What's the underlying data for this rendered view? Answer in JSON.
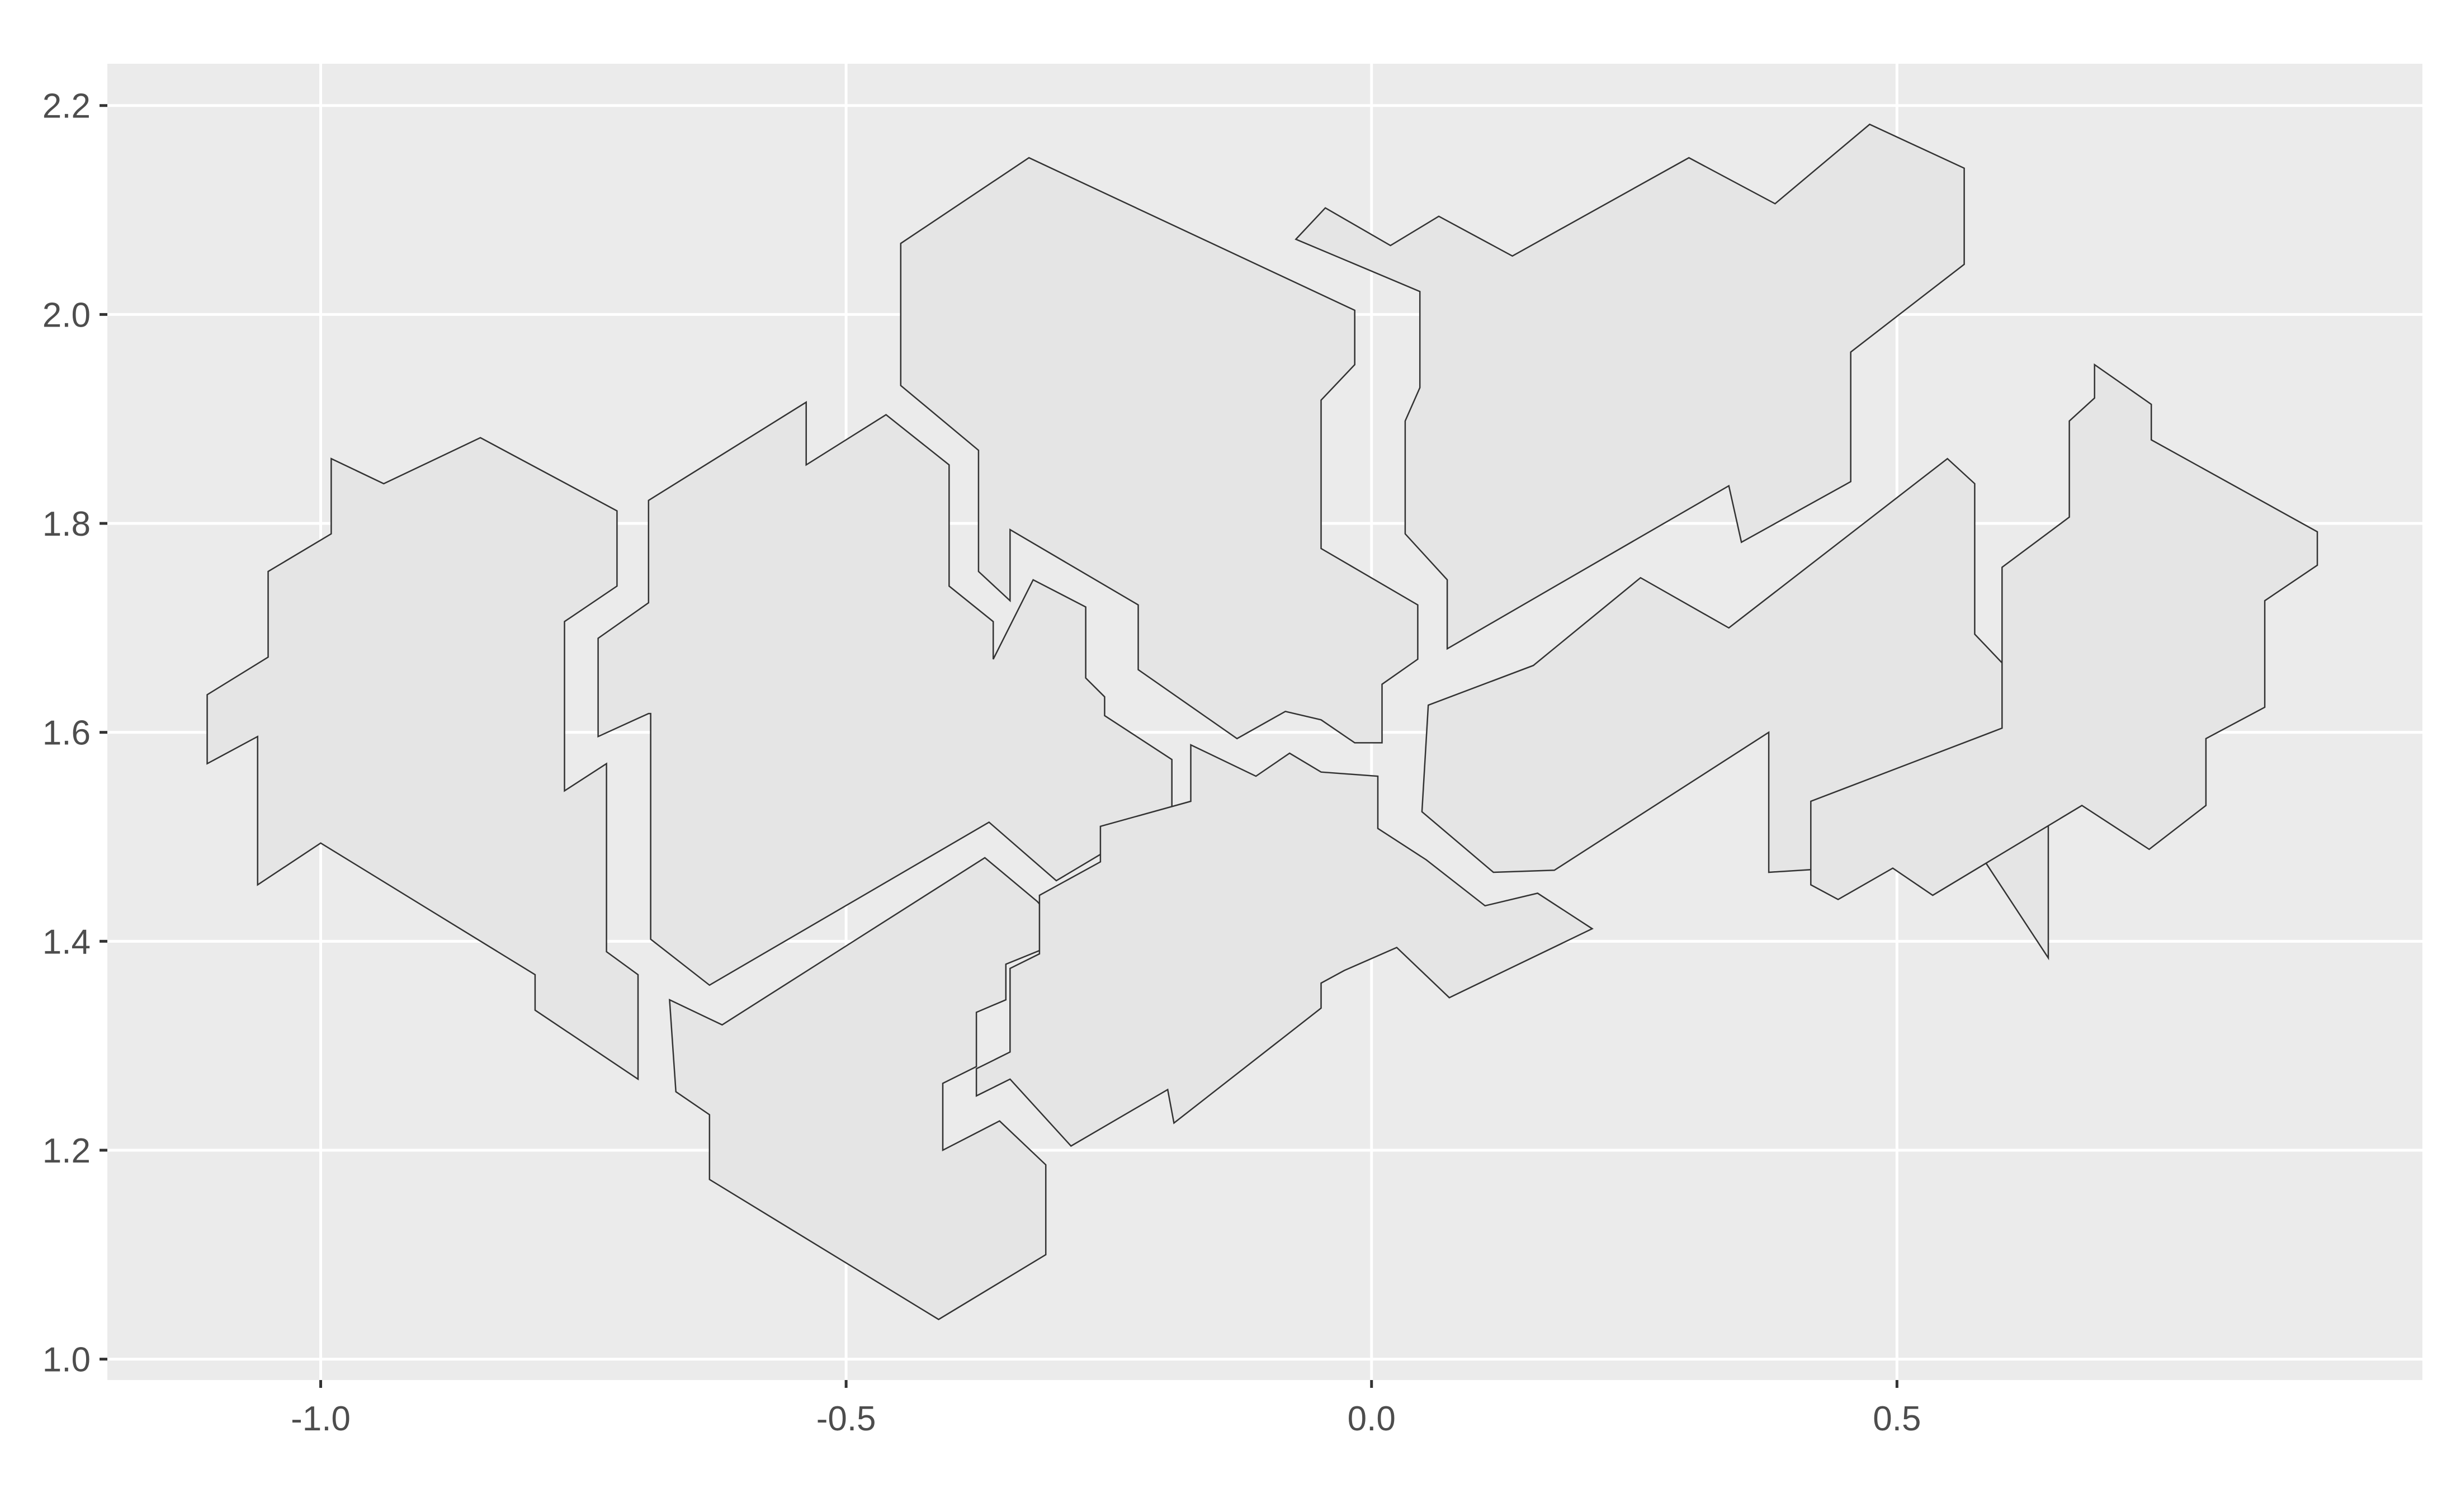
{
  "chart_data": {
    "type": "polygon",
    "title": "",
    "xlabel": "",
    "ylabel": "",
    "xlim": [
      -1.203,
      1.0
    ],
    "ylim": [
      0.98,
      2.24
    ],
    "x_ticks": [
      -1.0,
      -0.5,
      0.0,
      0.5
    ],
    "x_tick_labels": [
      "-1.0",
      "-0.5",
      "0.0",
      "0.5"
    ],
    "y_ticks": [
      1.0,
      1.2,
      1.4,
      1.6,
      1.8,
      2.0,
      2.2
    ],
    "y_tick_labels": [
      "1.0",
      "1.2",
      "1.4",
      "1.6",
      "1.8",
      "2.0",
      "2.2"
    ],
    "grid": true,
    "legend": "none",
    "colors": {
      "panel": "#ebebeb",
      "grid": "#ffffff",
      "fill": "#e5e5e5",
      "stroke": "#333333",
      "tick_text": "#4d4d4d",
      "tick_mark": "#333333"
    },
    "polygons": [
      {
        "points": [
          [
            -1.108,
            1.57
          ],
          [
            -1.108,
            1.636
          ],
          [
            -1.05,
            1.672
          ],
          [
            -1.05,
            1.754
          ],
          [
            -0.99,
            1.79
          ],
          [
            -0.99,
            1.862
          ],
          [
            -0.94,
            1.838
          ],
          [
            -0.848,
            1.882
          ],
          [
            -0.718,
            1.812
          ],
          [
            -0.718,
            1.74
          ],
          [
            -0.768,
            1.706
          ],
          [
            -0.768,
            1.544
          ],
          [
            -0.728,
            1.57
          ],
          [
            -0.728,
            1.39
          ],
          [
            -0.698,
            1.368
          ],
          [
            -0.698,
            1.268
          ],
          [
            -0.796,
            1.334
          ],
          [
            -0.796,
            1.368
          ],
          [
            -1.0,
            1.494
          ],
          [
            -1.06,
            1.454
          ],
          [
            -1.06,
            1.596
          ]
        ]
      },
      {
        "points": [
          [
            -0.688,
            1.822
          ],
          [
            -0.538,
            1.916
          ],
          [
            -0.538,
            1.856
          ],
          [
            -0.462,
            1.904
          ],
          [
            -0.402,
            1.856
          ],
          [
            -0.402,
            1.74
          ],
          [
            -0.36,
            1.706
          ],
          [
            -0.36,
            1.67
          ],
          [
            -0.322,
            1.746
          ],
          [
            -0.272,
            1.72
          ],
          [
            -0.272,
            1.652
          ],
          [
            -0.254,
            1.634
          ],
          [
            -0.254,
            1.616
          ],
          [
            -0.19,
            1.574
          ],
          [
            -0.19,
            1.524
          ],
          [
            -0.3,
            1.458
          ],
          [
            -0.364,
            1.514
          ],
          [
            -0.63,
            1.358
          ],
          [
            -0.686,
            1.402
          ],
          [
            -0.686,
            1.618
          ],
          [
            -0.688,
            1.618
          ],
          [
            -0.736,
            1.596
          ],
          [
            -0.736,
            1.69
          ],
          [
            -0.688,
            1.724
          ]
        ]
      },
      {
        "points": [
          [
            -0.448,
            2.068
          ],
          [
            -0.326,
            2.15
          ],
          [
            -0.016,
            2.004
          ],
          [
            -0.016,
            1.952
          ],
          [
            -0.048,
            1.918
          ],
          [
            -0.048,
            1.776
          ],
          [
            0.044,
            1.722
          ],
          [
            0.044,
            1.67
          ],
          [
            0.01,
            1.646
          ],
          [
            0.01,
            1.59
          ],
          [
            -0.016,
            1.59
          ],
          [
            -0.048,
            1.612
          ],
          [
            -0.082,
            1.62
          ],
          [
            -0.128,
            1.594
          ],
          [
            -0.222,
            1.66
          ],
          [
            -0.222,
            1.722
          ],
          [
            -0.344,
            1.794
          ],
          [
            -0.344,
            1.726
          ],
          [
            -0.374,
            1.754
          ],
          [
            -0.374,
            1.87
          ],
          [
            -0.448,
            1.932
          ]
        ]
      },
      {
        "points": [
          [
            -0.072,
            2.072
          ],
          [
            -0.044,
            2.102
          ],
          [
            0.018,
            2.066
          ],
          [
            0.064,
            2.094
          ],
          [
            0.134,
            2.056
          ],
          [
            0.302,
            2.15
          ],
          [
            0.384,
            2.106
          ],
          [
            0.474,
            2.182
          ],
          [
            0.564,
            2.14
          ],
          [
            0.564,
            2.048
          ],
          [
            0.456,
            1.964
          ],
          [
            0.456,
            1.84
          ],
          [
            0.352,
            1.782
          ],
          [
            0.34,
            1.836
          ],
          [
            0.072,
            1.68
          ],
          [
            0.072,
            1.746
          ],
          [
            0.032,
            1.79
          ],
          [
            0.032,
            1.898
          ],
          [
            0.046,
            1.93
          ],
          [
            0.046,
            2.022
          ]
        ]
      },
      {
        "points": [
          [
            0.054,
            1.626
          ],
          [
            0.154,
            1.664
          ],
          [
            0.256,
            1.748
          ],
          [
            0.34,
            1.7
          ],
          [
            0.548,
            1.862
          ],
          [
            0.574,
            1.838
          ],
          [
            0.574,
            1.694
          ],
          [
            0.644,
            1.62
          ],
          [
            0.644,
            1.384
          ],
          [
            0.55,
            1.528
          ],
          [
            0.522,
            1.56
          ],
          [
            0.44,
            1.47
          ],
          [
            0.378,
            1.466
          ],
          [
            0.378,
            1.6
          ],
          [
            0.174,
            1.468
          ],
          [
            0.116,
            1.466
          ],
          [
            0.048,
            1.524
          ]
        ]
      },
      {
        "points": [
          [
            0.688,
            1.952
          ],
          [
            0.742,
            1.914
          ],
          [
            0.742,
            1.88
          ],
          [
            0.9,
            1.792
          ],
          [
            0.9,
            1.76
          ],
          [
            0.85,
            1.726
          ],
          [
            0.85,
            1.624
          ],
          [
            0.794,
            1.594
          ],
          [
            0.794,
            1.53
          ],
          [
            0.74,
            1.488
          ],
          [
            0.676,
            1.53
          ],
          [
            0.534,
            1.444
          ],
          [
            0.496,
            1.47
          ],
          [
            0.444,
            1.44
          ],
          [
            0.418,
            1.454
          ],
          [
            0.418,
            1.534
          ],
          [
            0.6,
            1.604
          ],
          [
            0.6,
            1.758
          ],
          [
            0.664,
            1.806
          ],
          [
            0.664,
            1.898
          ],
          [
            0.688,
            1.92
          ]
        ]
      },
      {
        "points": [
          [
            -0.668,
            1.344
          ],
          [
            -0.618,
            1.32
          ],
          [
            -0.368,
            1.48
          ],
          [
            -0.318,
            1.438
          ],
          [
            -0.304,
            1.422
          ],
          [
            -0.304,
            1.396
          ],
          [
            -0.348,
            1.378
          ],
          [
            -0.348,
            1.344
          ],
          [
            -0.376,
            1.332
          ],
          [
            -0.376,
            1.28
          ],
          [
            -0.408,
            1.264
          ],
          [
            -0.408,
            1.2
          ],
          [
            -0.354,
            1.228
          ],
          [
            -0.31,
            1.186
          ],
          [
            -0.31,
            1.1
          ],
          [
            -0.412,
            1.038
          ],
          [
            -0.63,
            1.172
          ],
          [
            -0.63,
            1.234
          ],
          [
            -0.662,
            1.256
          ]
        ]
      },
      {
        "points": [
          [
            -0.172,
            1.588
          ],
          [
            -0.11,
            1.558
          ],
          [
            -0.078,
            1.58
          ],
          [
            -0.048,
            1.562
          ],
          [
            0.006,
            1.558
          ],
          [
            0.006,
            1.508
          ],
          [
            0.052,
            1.478
          ],
          [
            0.108,
            1.434
          ],
          [
            0.158,
            1.446
          ],
          [
            0.21,
            1.412
          ],
          [
            0.074,
            1.346
          ],
          [
            0.024,
            1.394
          ],
          [
            -0.026,
            1.372
          ],
          [
            -0.048,
            1.36
          ],
          [
            -0.048,
            1.336
          ],
          [
            -0.188,
            1.226
          ],
          [
            -0.194,
            1.258
          ],
          [
            -0.286,
            1.204
          ],
          [
            -0.344,
            1.268
          ],
          [
            -0.376,
            1.252
          ],
          [
            -0.376,
            1.278
          ],
          [
            -0.344,
            1.294
          ],
          [
            -0.344,
            1.374
          ],
          [
            -0.316,
            1.388
          ],
          [
            -0.316,
            1.444
          ],
          [
            -0.258,
            1.476
          ],
          [
            -0.258,
            1.51
          ],
          [
            -0.172,
            1.534
          ]
        ]
      }
    ]
  }
}
